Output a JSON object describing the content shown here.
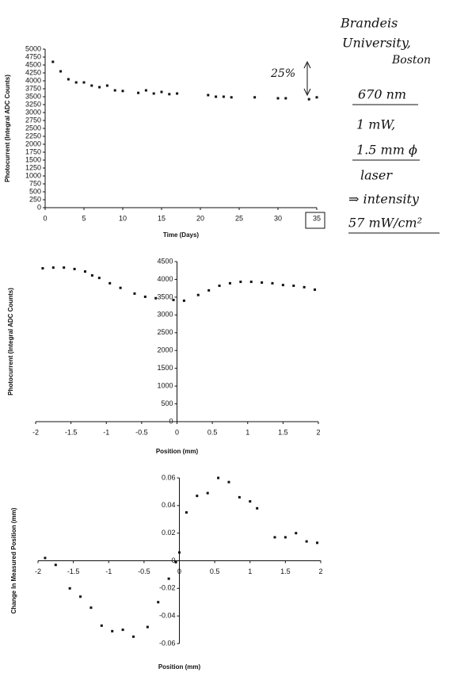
{
  "chart_data": [
    {
      "type": "scatter",
      "x_label": "Time (Days)",
      "y_label": "Photocurrent (Integral ADC Counts)",
      "annotation": "25%",
      "x": [
        1,
        2,
        3,
        4,
        5,
        6,
        7,
        8,
        9,
        10,
        12,
        13,
        14,
        15,
        16,
        17,
        21,
        22,
        23,
        24,
        27,
        30,
        31,
        34,
        35
      ],
      "values": [
        4600,
        4300,
        4050,
        3950,
        3950,
        3850,
        3800,
        3850,
        3700,
        3680,
        3620,
        3700,
        3600,
        3650,
        3580,
        3600,
        3550,
        3500,
        3500,
        3480,
        3480,
        3450,
        3450,
        3420,
        3480
      ],
      "color": "#111111",
      "xlim": [
        0,
        35
      ],
      "xticks": [
        0,
        5,
        10,
        15,
        20,
        25,
        30,
        35
      ],
      "ylim": [
        0,
        5000
      ],
      "yticks": [
        0,
        250,
        500,
        750,
        1000,
        1250,
        1500,
        1750,
        2000,
        2250,
        2500,
        2750,
        3000,
        3250,
        3500,
        3750,
        4000,
        4250,
        4500,
        4750,
        5000
      ]
    },
    {
      "type": "scatter",
      "x_label": "Position (mm)",
      "y_label": "Photocurrent (Integral ADC Counts)",
      "x": [
        -1.9,
        -1.75,
        -1.6,
        -1.45,
        -1.3,
        -1.2,
        -1.1,
        -0.95,
        -0.8,
        -0.6,
        -0.45,
        -0.3,
        -0.05,
        0.1,
        0.3,
        0.45,
        0.6,
        0.75,
        0.9,
        1.05,
        1.2,
        1.35,
        1.5,
        1.65,
        1.8,
        1.95
      ],
      "values": [
        4310,
        4330,
        4330,
        4290,
        4220,
        4110,
        4040,
        3890,
        3760,
        3600,
        3510,
        3470,
        3420,
        3400,
        3560,
        3690,
        3820,
        3890,
        3930,
        3930,
        3910,
        3890,
        3840,
        3820,
        3780,
        3710
      ],
      "color": "#111111",
      "xlim": [
        -2,
        2
      ],
      "xticks": [
        -2,
        -1.5,
        -1,
        -0.5,
        0,
        0.5,
        1,
        1.5,
        2
      ],
      "ylim": [
        0,
        4500
      ],
      "yticks": [
        0,
        500,
        1000,
        1500,
        2000,
        2500,
        3000,
        3500,
        4000,
        4500
      ]
    },
    {
      "type": "scatter",
      "x_label": "Position (mm)",
      "y_label": "Change In Measured Position (mm)",
      "x": [
        -1.9,
        -1.75,
        -1.55,
        -1.4,
        -1.25,
        -1.1,
        -0.95,
        -0.8,
        -0.65,
        -0.45,
        -0.3,
        -0.15,
        -0.05,
        0.0,
        0.1,
        0.25,
        0.4,
        0.55,
        0.7,
        0.85,
        1.0,
        1.1,
        1.35,
        1.5,
        1.65,
        1.8,
        1.95
      ],
      "values": [
        0.002,
        -0.003,
        -0.02,
        -0.026,
        -0.034,
        -0.047,
        -0.051,
        -0.05,
        -0.055,
        -0.048,
        -0.03,
        -0.013,
        -0.001,
        0.006,
        0.035,
        0.047,
        0.049,
        0.06,
        0.057,
        0.046,
        0.043,
        0.038,
        0.017,
        0.017,
        0.02,
        0.014,
        0.013
      ],
      "color": "#111111",
      "xlim": [
        -2,
        2
      ],
      "xticks": [
        -2,
        -1.5,
        -1,
        -0.5,
        0,
        0.5,
        1,
        1.5,
        2
      ],
      "ylim": [
        -0.06,
        0.06
      ],
      "yticks": [
        -0.06,
        -0.04,
        -0.02,
        0,
        0.02,
        0.04,
        0.06
      ]
    }
  ],
  "notes": [
    "Brandeis",
    "University,",
    "Boston",
    "670 nm",
    "1 mW,",
    "1.5 mm ϕ",
    "laser",
    "⇒ intensity",
    "57 mW/cm²"
  ]
}
